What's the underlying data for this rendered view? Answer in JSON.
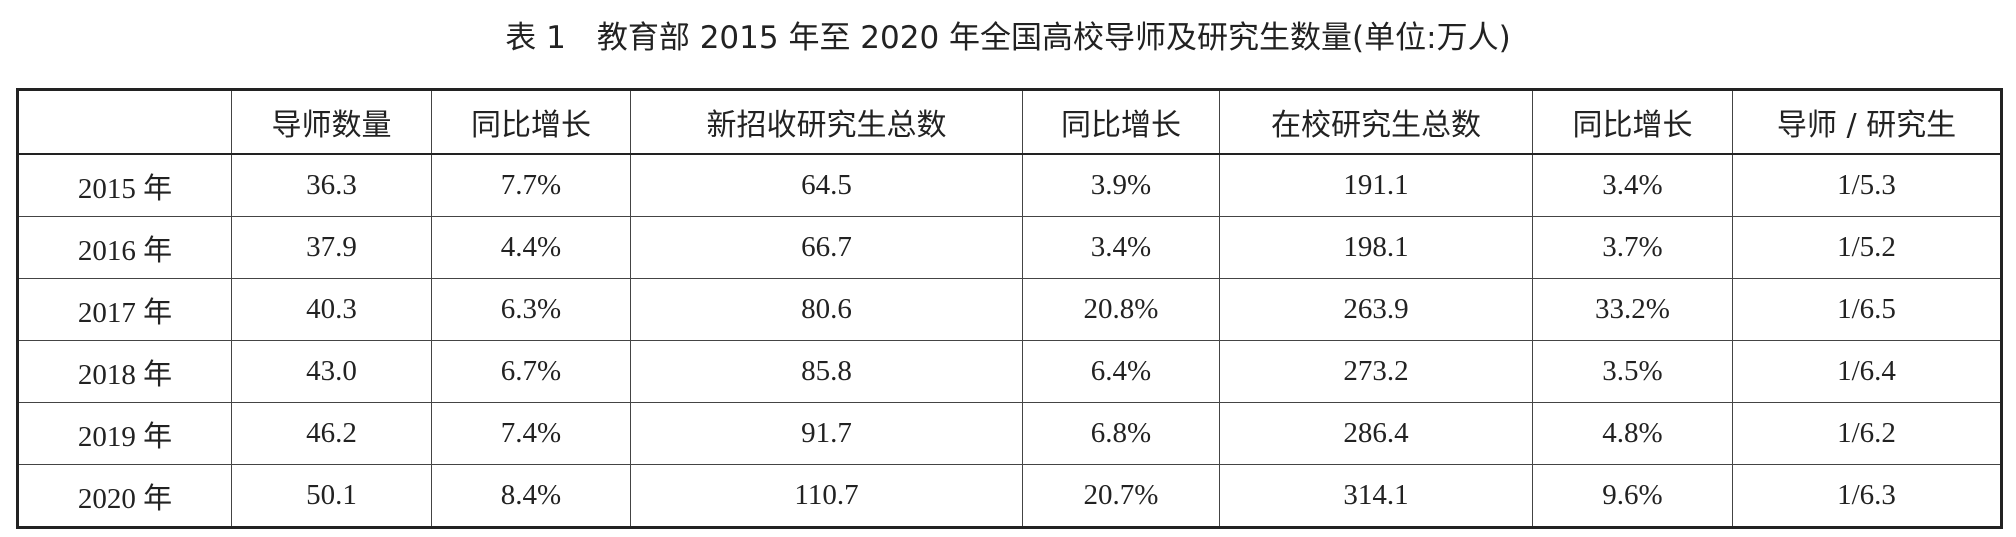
{
  "title": "表 1　教育部 2015 年至 2020 年全国高校导师及研究生数量(单位:万人)",
  "table": {
    "header": [
      "导师数量",
      "同比增长",
      "新招收研究生总数",
      "同比增长",
      "在校研究生总数",
      "同比增长",
      "导师 / 研究生"
    ],
    "rows": [
      [
        "2015 年",
        "36.3",
        "7.7%",
        "64.5",
        "3.9%",
        "191.1",
        "3.4%",
        "1/5.3"
      ],
      [
        "2016 年",
        "37.9",
        "4.4%",
        "66.7",
        "3.4%",
        "198.1",
        "3.7%",
        "1/5.2"
      ],
      [
        "2017 年",
        "40.3",
        "6.3%",
        "80.6",
        "20.8%",
        "263.9",
        "33.2%",
        "1/6.5"
      ],
      [
        "2018 年",
        "43.0",
        "6.7%",
        "85.8",
        "6.4%",
        "273.2",
        "3.5%",
        "1/6.4"
      ],
      [
        "2019 年",
        "46.2",
        "7.4%",
        "91.7",
        "6.8%",
        "286.4",
        "4.8%",
        "1/6.2"
      ],
      [
        "2020 年",
        "50.1",
        "8.4%",
        "110.7",
        "20.7%",
        "314.1",
        "9.6%",
        "1/6.3"
      ]
    ]
  }
}
